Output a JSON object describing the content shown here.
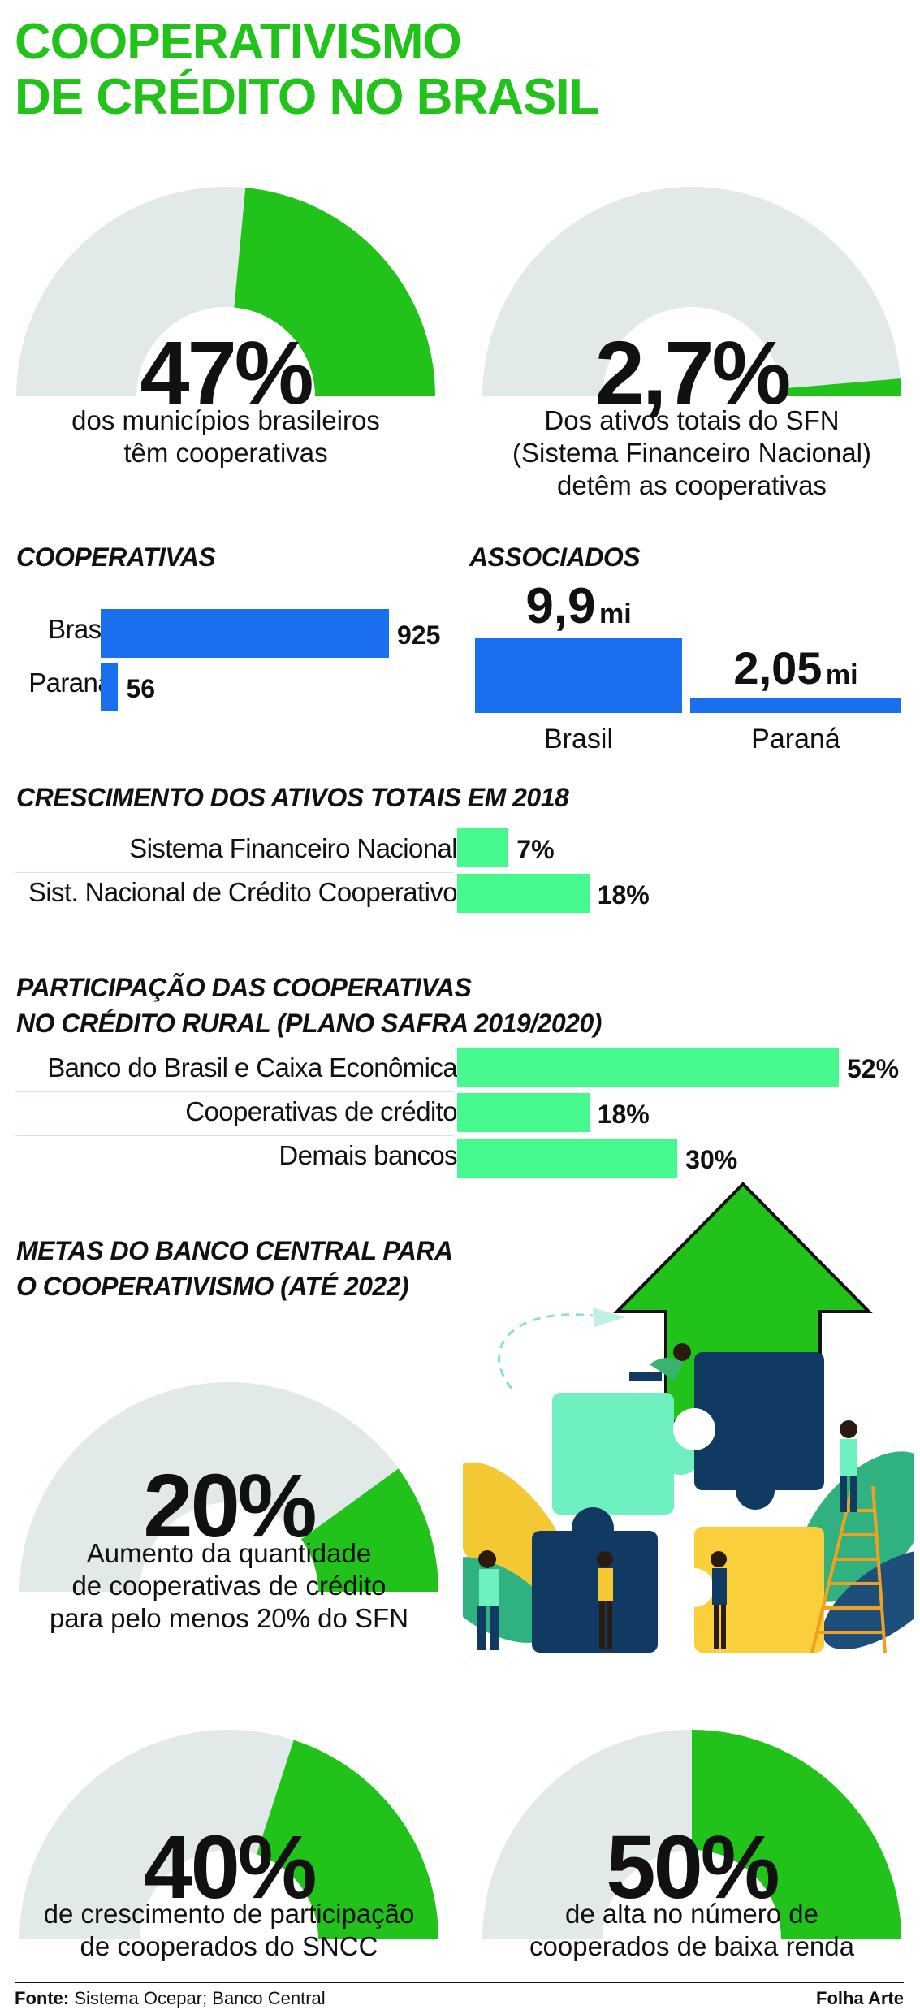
{
  "title": {
    "line1": "COOPERATIVISMO",
    "line2": "DE CRÉDITO NO BRASIL"
  },
  "colors": {
    "green": "#21c21a",
    "gauge_bg": "#e1e9e9",
    "blue": "#1a6fef",
    "mint": "#45f98e"
  },
  "gauges": [
    {
      "id": "municipios",
      "value": 47,
      "label": "47%",
      "caption": [
        "dos municípios brasileiros",
        "têm cooperativas"
      ]
    },
    {
      "id": "ativos",
      "value": 2.7,
      "label": "2,7%",
      "caption": [
        "Dos ativos totais do SFN",
        "(Sistema Financeiro Nacional)",
        "detêm as cooperativas"
      ]
    },
    {
      "id": "meta20",
      "value": 20,
      "label": "20%",
      "caption": [
        "Aumento da quantidade",
        "de cooperativas de crédito",
        "para pelo menos 20% do SFN"
      ]
    },
    {
      "id": "meta40",
      "value": 40,
      "label": "40%",
      "caption": [
        "de crescimento de participação",
        "de cooperados do SNCC"
      ]
    },
    {
      "id": "meta50",
      "value": 50,
      "label": "50%",
      "caption": [
        "de alta no número de",
        "cooperados de baixa renda"
      ]
    }
  ],
  "cooperativas": {
    "title": "COOPERATIVAS",
    "categories": [
      "Brasil",
      "Paraná"
    ],
    "values": [
      925,
      56
    ],
    "value_labels": [
      "925",
      "56"
    ]
  },
  "associados": {
    "title": "ASSOCIADOS",
    "categories": [
      "Brasil",
      "Paraná"
    ],
    "values": [
      9.9,
      2.05
    ],
    "value_labels": [
      "9,9",
      "2,05"
    ],
    "unit": "mi"
  },
  "crescimento": {
    "title": "CRESCIMENTO DOS ATIVOS TOTAIS EM 2018",
    "categories": [
      "Sistema Financeiro Nacional",
      "Sist. Nacional de Crédito Cooperativo"
    ],
    "values": [
      7,
      18
    ],
    "value_labels": [
      "7%",
      "18%"
    ]
  },
  "participacao": {
    "title_line1": "PARTICIPAÇÃO DAS COOPERATIVAS",
    "title_line2": "NO CRÉDITO RURAL (PLANO SAFRA 2019/2020)",
    "categories": [
      "Banco do Brasil e Caixa Econômica",
      "Cooperativas de crédito",
      "Demais bancos"
    ],
    "values": [
      52,
      18,
      30
    ],
    "value_labels": [
      "52%",
      "18%",
      "30%"
    ]
  },
  "metas": {
    "title_line1": "METAS DO BANCO CENTRAL PARA",
    "title_line2": "O COOPERATIVISMO (ATÉ 2022)"
  },
  "footer": {
    "source_label": "Fonte:",
    "source_text": " Sistema Ocepar; Banco Central",
    "credit": "Folha Arte"
  },
  "chart_data": [
    {
      "type": "pie",
      "title": "",
      "values": [
        47
      ],
      "unit": "%",
      "note": "dos municípios brasileiros têm cooperativas"
    },
    {
      "type": "pie",
      "title": "",
      "values": [
        2.7
      ],
      "unit": "%",
      "note": "Dos ativos totais do SFN (Sistema Financeiro Nacional) detêm as cooperativas"
    },
    {
      "type": "bar",
      "title": "COOPERATIVAS",
      "categories": [
        "Brasil",
        "Paraná"
      ],
      "values": [
        925,
        56
      ],
      "xlabel": "",
      "ylabel": ""
    },
    {
      "type": "bar",
      "title": "ASSOCIADOS",
      "categories": [
        "Brasil",
        "Paraná"
      ],
      "values": [
        9.9,
        2.05
      ],
      "unit": "mi",
      "xlabel": "",
      "ylabel": ""
    },
    {
      "type": "bar",
      "title": "CRESCIMENTO DOS ATIVOS TOTAIS EM 2018",
      "categories": [
        "Sistema Financeiro Nacional",
        "Sist. Nacional de Crédito Cooperativo"
      ],
      "values": [
        7,
        18
      ],
      "unit": "%",
      "xlabel": "",
      "ylabel": ""
    },
    {
      "type": "bar",
      "title": "PARTICIPAÇÃO DAS COOPERATIVAS NO CRÉDITO RURAL (PLANO SAFRA 2019/2020)",
      "categories": [
        "Banco do Brasil e Caixa Econômica",
        "Cooperativas de crédito",
        "Demais bancos"
      ],
      "values": [
        52,
        18,
        30
      ],
      "unit": "%",
      "xlabel": "",
      "ylabel": ""
    },
    {
      "type": "pie",
      "title": "METAS DO BANCO CENTRAL PARA O COOPERATIVISMO (ATÉ 2022)",
      "values": [
        20
      ],
      "unit": "%",
      "note": "Aumento da quantidade de cooperativas de crédito para pelo menos 20% do SFN"
    },
    {
      "type": "pie",
      "title": "",
      "values": [
        40
      ],
      "unit": "%",
      "note": "de crescimento de participação de cooperados do SNCC"
    },
    {
      "type": "pie",
      "title": "",
      "values": [
        50
      ],
      "unit": "%",
      "note": "de alta no número de cooperados de baixa renda"
    }
  ]
}
